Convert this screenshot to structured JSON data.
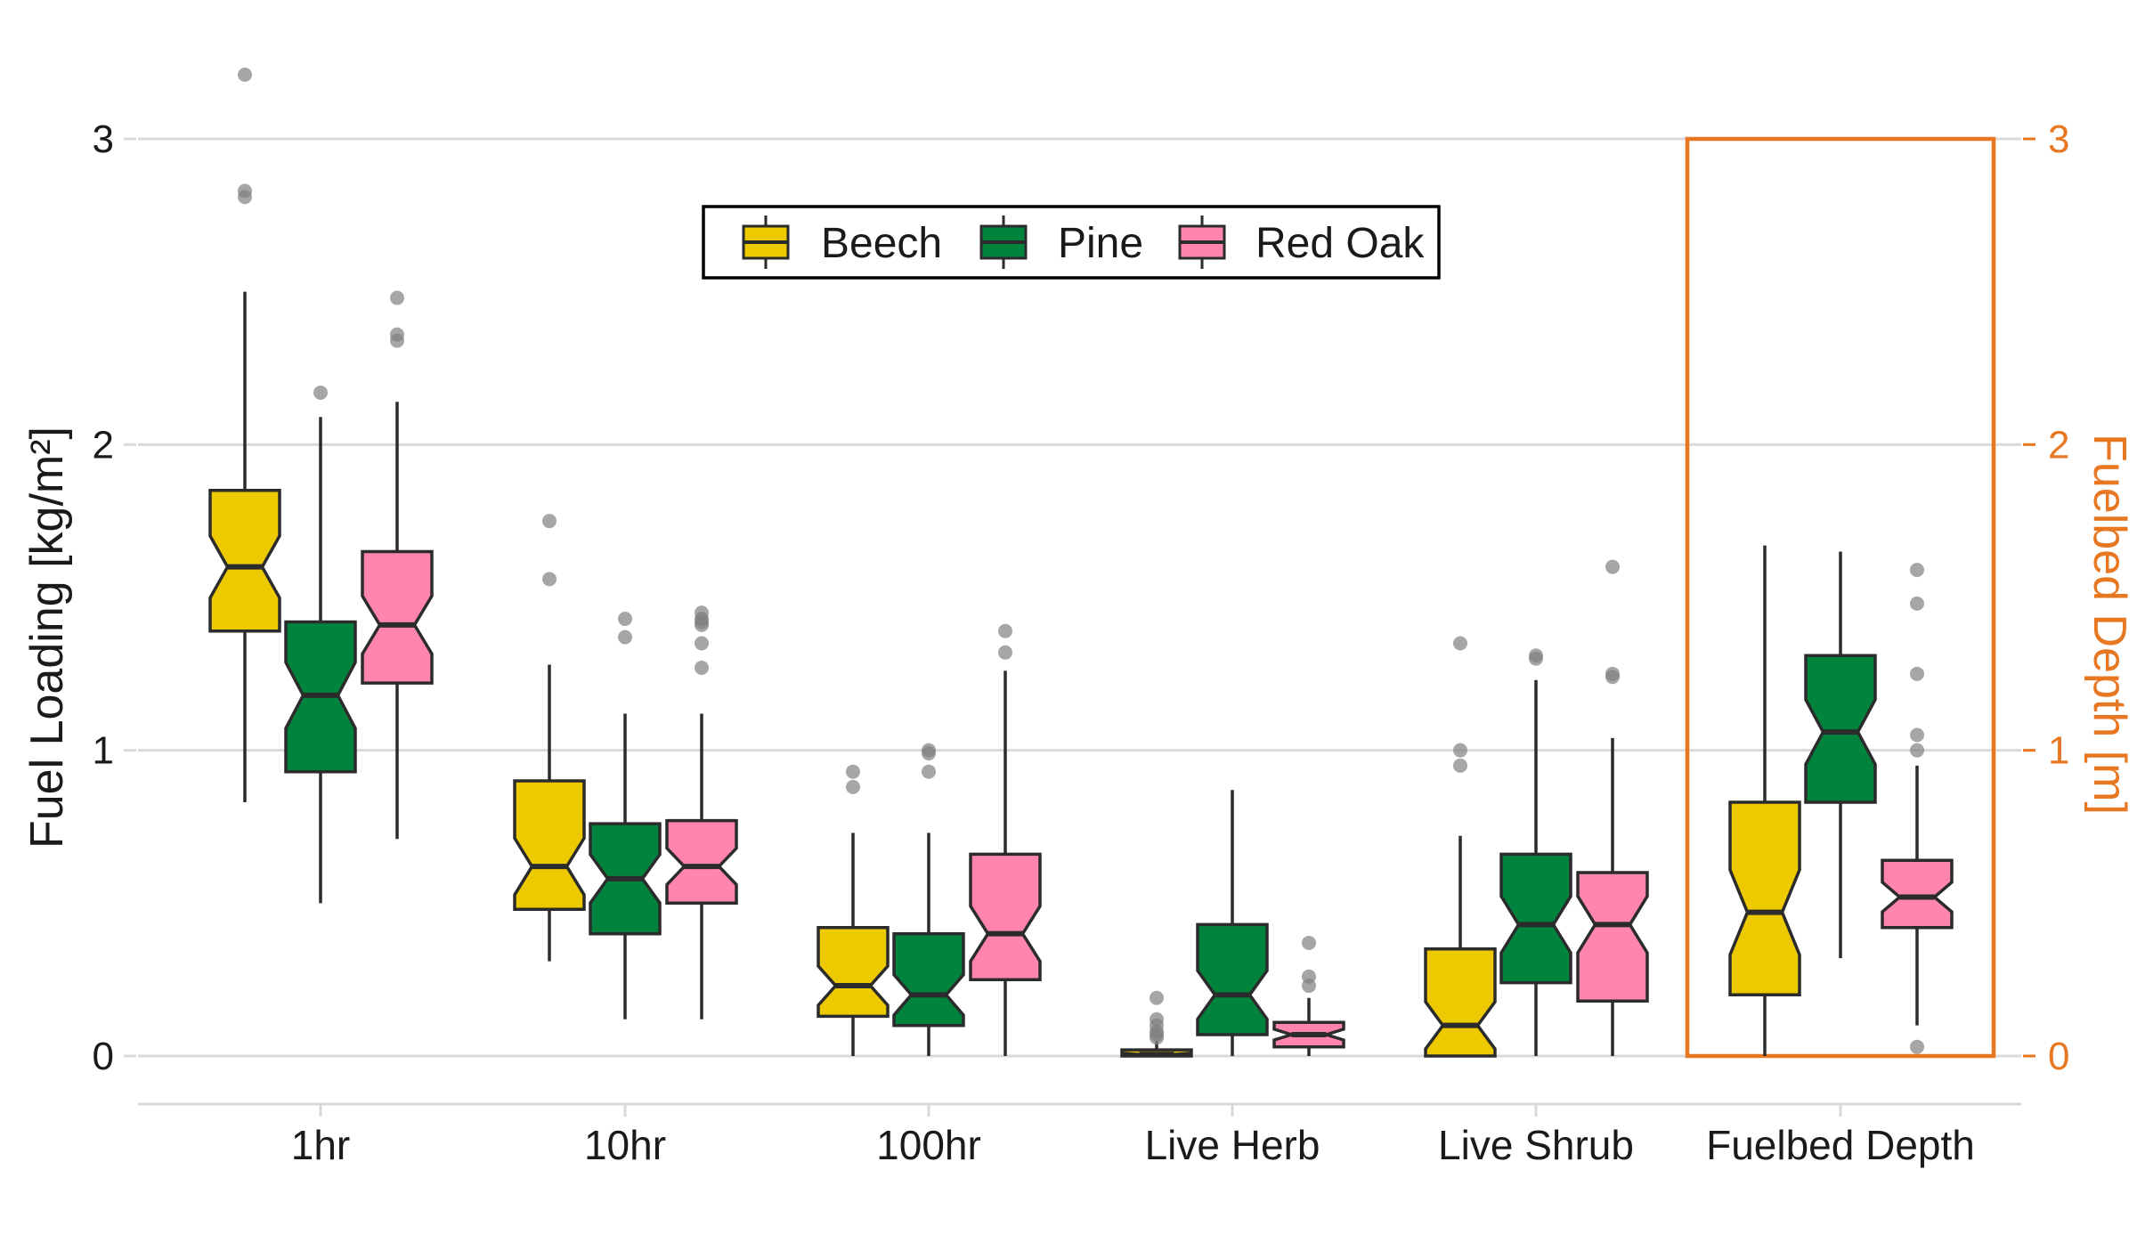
{
  "chart_data": {
    "type": "boxplot",
    "notched": true,
    "categories": [
      "1hr",
      "10hr",
      "100hr",
      "Live Herb",
      "Live Shrub",
      "Fuelbed Depth"
    ],
    "ylabel": "Fuel Loading [kg/m²]",
    "y2label": "Fuelbed Depth [m]",
    "ylim": [
      -0.15,
      3.3
    ],
    "yticks": [
      0,
      1,
      2,
      3
    ],
    "y2ticks": [
      0,
      1,
      2,
      3
    ],
    "grid": "horizontal",
    "highlight_category": "Fuelbed Depth",
    "legend": {
      "placement": "top-center",
      "entries": [
        "Beech",
        "Pine",
        "Red Oak"
      ]
    },
    "colors": {
      "Beech": "#EDC900",
      "Pine": "#00843D",
      "Red Oak": "#FF85AD",
      "secondary_axis": "#E87722",
      "grid": "#D9D9D9",
      "outlier": "#808080"
    },
    "series": [
      {
        "name": "Beech",
        "boxes": [
          {
            "category": "1hr",
            "whisker_low": 0.83,
            "q1": 1.39,
            "median": 1.6,
            "q3": 1.85,
            "whisker_high": 2.5,
            "outliers": [
              2.81,
              2.83,
              3.21
            ]
          },
          {
            "category": "10hr",
            "whisker_low": 0.31,
            "q1": 0.48,
            "median": 0.62,
            "q3": 0.9,
            "whisker_high": 1.28,
            "outliers": [
              1.56,
              1.75
            ]
          },
          {
            "category": "100hr",
            "whisker_low": 0.0,
            "q1": 0.13,
            "median": 0.23,
            "q3": 0.42,
            "whisker_high": 0.73,
            "outliers": [
              0.88,
              0.93
            ]
          },
          {
            "category": "Live Herb",
            "whisker_low": 0.0,
            "q1": 0.0,
            "median": 0.005,
            "q3": 0.02,
            "whisker_high": 0.05,
            "outliers": [
              0.06,
              0.07,
              0.08,
              0.1,
              0.12,
              0.19
            ]
          },
          {
            "category": "Live Shrub",
            "whisker_low": 0.0,
            "q1": 0.0,
            "median": 0.1,
            "q3": 0.35,
            "whisker_high": 0.72,
            "outliers": [
              0.95,
              1.0,
              1.35
            ]
          },
          {
            "category": "Fuelbed Depth",
            "whisker_low": 0.0,
            "q1": 0.2,
            "median": 0.47,
            "q3": 0.83,
            "whisker_high": 1.67,
            "outliers": []
          }
        ]
      },
      {
        "name": "Pine",
        "boxes": [
          {
            "category": "1hr",
            "whisker_low": 0.5,
            "q1": 0.93,
            "median": 1.18,
            "q3": 1.42,
            "whisker_high": 2.09,
            "outliers": [
              2.17
            ]
          },
          {
            "category": "10hr",
            "whisker_low": 0.12,
            "q1": 0.4,
            "median": 0.58,
            "q3": 0.76,
            "whisker_high": 1.12,
            "outliers": [
              1.37,
              1.43
            ]
          },
          {
            "category": "100hr",
            "whisker_low": 0.0,
            "q1": 0.1,
            "median": 0.2,
            "q3": 0.4,
            "whisker_high": 0.73,
            "outliers": [
              0.93,
              0.99,
              1.0
            ]
          },
          {
            "category": "Live Herb",
            "whisker_low": 0.0,
            "q1": 0.07,
            "median": 0.2,
            "q3": 0.43,
            "whisker_high": 0.87,
            "outliers": []
          },
          {
            "category": "Live Shrub",
            "whisker_low": 0.0,
            "q1": 0.24,
            "median": 0.43,
            "q3": 0.66,
            "whisker_high": 1.23,
            "outliers": [
              1.3,
              1.31
            ]
          },
          {
            "category": "Fuelbed Depth",
            "whisker_low": 0.32,
            "q1": 0.83,
            "median": 1.06,
            "q3": 1.31,
            "whisker_high": 1.65,
            "outliers": []
          }
        ]
      },
      {
        "name": "Red Oak",
        "boxes": [
          {
            "category": "1hr",
            "whisker_low": 0.71,
            "q1": 1.22,
            "median": 1.41,
            "q3": 1.65,
            "whisker_high": 2.14,
            "outliers": [
              2.34,
              2.36,
              2.48
            ]
          },
          {
            "category": "10hr",
            "whisker_low": 0.12,
            "q1": 0.5,
            "median": 0.62,
            "q3": 0.77,
            "whisker_high": 1.12,
            "outliers": [
              1.27,
              1.35,
              1.41,
              1.42,
              1.43,
              1.45
            ]
          },
          {
            "category": "100hr",
            "whisker_low": 0.0,
            "q1": 0.25,
            "median": 0.4,
            "q3": 0.66,
            "whisker_high": 1.26,
            "outliers": [
              1.32,
              1.39
            ]
          },
          {
            "category": "Live Herb",
            "whisker_low": 0.0,
            "q1": 0.03,
            "median": 0.07,
            "q3": 0.11,
            "whisker_high": 0.19,
            "outliers": [
              0.23,
              0.26,
              0.37
            ]
          },
          {
            "category": "Live Shrub",
            "whisker_low": 0.0,
            "q1": 0.18,
            "median": 0.43,
            "q3": 0.6,
            "whisker_high": 1.04,
            "outliers": [
              1.24,
              1.25,
              1.6
            ]
          },
          {
            "category": "Fuelbed Depth",
            "whisker_low": 0.1,
            "q1": 0.42,
            "median": 0.52,
            "q3": 0.64,
            "whisker_high": 0.95,
            "outliers": [
              0.03,
              1.0,
              1.05,
              1.25,
              1.48,
              1.59
            ]
          }
        ]
      }
    ]
  }
}
